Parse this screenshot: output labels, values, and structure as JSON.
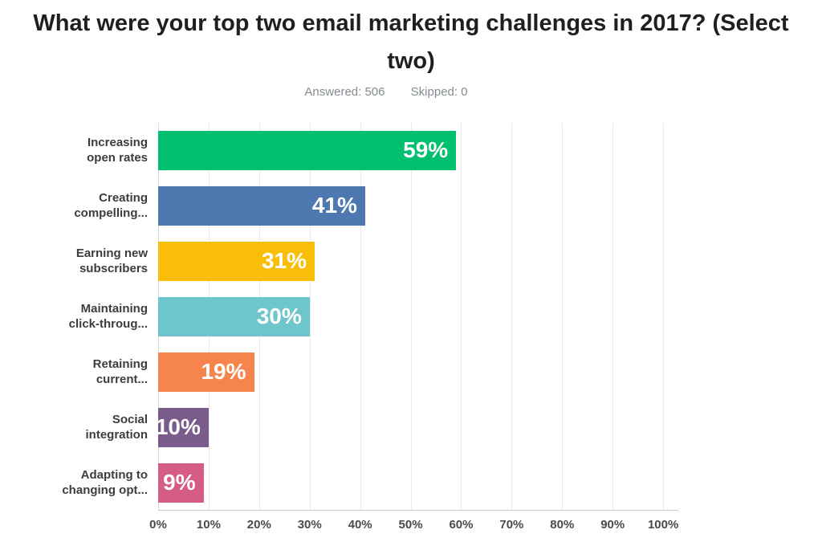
{
  "header": {
    "title": "What were your top two email marketing challenges in 2017? (Select two)",
    "title_lines": [
      "What were your top two email marketing challenges in 2017? (Select",
      "two)"
    ],
    "answered_label": "Answered: 506",
    "skipped_label": "Skipped: 0"
  },
  "chart_data": {
    "type": "bar",
    "orientation": "horizontal",
    "title": "What were your top two email marketing challenges in 2017? (Select two)",
    "answered": 506,
    "skipped": 0,
    "categories": [
      "Increasing open rates",
      "Creating compelling...",
      "Earning new subscribers",
      "Maintaining click-throug...",
      "Retaining current...",
      "Social integration",
      "Adapting to changing opt..."
    ],
    "category_lines": [
      [
        "Increasing",
        "open rates"
      ],
      [
        "Creating",
        "compelling..."
      ],
      [
        "Earning new",
        "subscribers"
      ],
      [
        "Maintaining",
        "click-throug..."
      ],
      [
        "Retaining",
        "current..."
      ],
      [
        "Social",
        "integration"
      ],
      [
        "Adapting to",
        "changing opt..."
      ]
    ],
    "values": [
      59,
      41,
      31,
      30,
      19,
      10,
      9
    ],
    "value_labels": [
      "59%",
      "41%",
      "31%",
      "30%",
      "19%",
      "10%",
      "9%"
    ],
    "bar_colors": [
      "#00BF6F",
      "#4D79B0",
      "#F8BE08",
      "#6EC5CB",
      "#F6854D",
      "#7A5C8C",
      "#D65C88"
    ],
    "x_ticks": [
      "0%",
      "10%",
      "20%",
      "30%",
      "40%",
      "50%",
      "60%",
      "70%",
      "80%",
      "90%",
      "100%"
    ],
    "xlabel": "",
    "ylabel": "",
    "xlim": [
      0,
      103
    ],
    "tick_step": 10,
    "axis_max": 103,
    "grid": true,
    "legend": false,
    "value_label_color": "#ffffff",
    "background": "#ffffff"
  }
}
